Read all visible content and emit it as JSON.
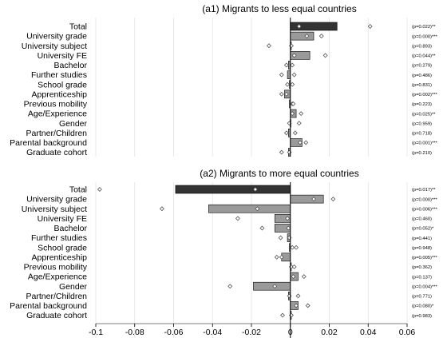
{
  "chart_data": [
    {
      "type": "bar",
      "title": "(a1) Migrants to less equal countries",
      "categories": [
        "Total",
        "University grade",
        "University subject",
        "University FE",
        "Bachelor",
        "Further studies",
        "School grade",
        "Apprenticeship",
        "Previous mobility",
        "Age/Experience",
        "Gender",
        "Partner/Children",
        "Parental background",
        "Graduate cohort"
      ],
      "values": [
        0.024,
        0.012,
        0.0005,
        0.01,
        -0.001,
        -0.0015,
        -0.0005,
        -0.003,
        -0.0005,
        0.003,
        0.0003,
        -0.001,
        0.006,
        -0.001
      ],
      "markers_inner": [
        0.0045,
        0.0085,
        0.0005,
        0.002,
        -0.002,
        -0.0045,
        -0.0015,
        -0.002,
        0.001,
        0.001,
        -0.0005,
        -0.002,
        0.005,
        -0.0005
      ],
      "markers_outer": [
        0.041,
        0.016,
        -0.011,
        0.018,
        0.001,
        0.002,
        0.001,
        -0.0045,
        0.0015,
        0.0055,
        0.0045,
        0.0025,
        0.008,
        -0.0045
      ],
      "pvalues": [
        "(p=0.022)**",
        "(p=0.000)***",
        "(p=0.893)",
        "(p=0.044)**",
        "(p=0.279)",
        "(p=0.486)",
        "(p=0.831)",
        "(p=0.002)***",
        "(p=0.223)",
        "(p=0.025)**",
        "(p=0.959)",
        "(p=0.718)",
        "(p=0.001)***",
        "(p=0.210)"
      ]
    },
    {
      "type": "bar",
      "title": "(a2) Migrants to more equal countries",
      "categories": [
        "Total",
        "University grade",
        "University subject",
        "University FE",
        "Bachelor",
        "Further studies",
        "School grade",
        "Apprenticeship",
        "Previous mobility",
        "Age/Experience",
        "Gender",
        "Partner/Children",
        "Parental background",
        "Graduate cohort"
      ],
      "values": [
        -0.059,
        0.017,
        -0.042,
        -0.008,
        -0.008,
        -0.0015,
        -0.0005,
        -0.0045,
        0.0005,
        0.004,
        -0.019,
        -0.001,
        0.004,
        0.0005
      ],
      "markers_inner": [
        -0.018,
        0.012,
        -0.017,
        -0.0015,
        -0.001,
        -0.0005,
        0.001,
        -0.0045,
        0.0005,
        0.0015,
        -0.008,
        -0.0005,
        0.003,
        0.0005
      ],
      "markers_outer": [
        -0.098,
        0.022,
        -0.066,
        -0.027,
        -0.0145,
        -0.005,
        0.003,
        -0.007,
        0.002,
        0.007,
        -0.031,
        0.004,
        0.009,
        -0.004
      ],
      "pvalues": [
        "(p=0.017)**",
        "(p=0.000)***",
        "(p=0.006)***",
        "(p=0.460)",
        "(p=0.052)*",
        "(p=0.441)",
        "(p=0.948)",
        "(p=0.005)***",
        "(p=0.362)",
        "(p=0.137)",
        "(p=0.004)***",
        "(p=0.771)",
        "(p=0.080)*",
        "(p=0.983)"
      ]
    }
  ],
  "axis": {
    "xlim": [
      -0.1,
      0.06
    ],
    "ticks": [
      -0.1,
      -0.08,
      -0.06,
      -0.04,
      -0.02,
      0,
      0.02,
      0.04,
      0.06
    ],
    "tick_labels": [
      "-0.1",
      "-0.08",
      "-0.06",
      "-0.04",
      "-0.02",
      "0",
      "0.02",
      "0.04",
      "0.06"
    ],
    "grid": true
  },
  "colors": {
    "total_bar": "#333333",
    "bar": "#9a9a9a",
    "grid": "#e3e3e3",
    "edge": "#000000"
  }
}
